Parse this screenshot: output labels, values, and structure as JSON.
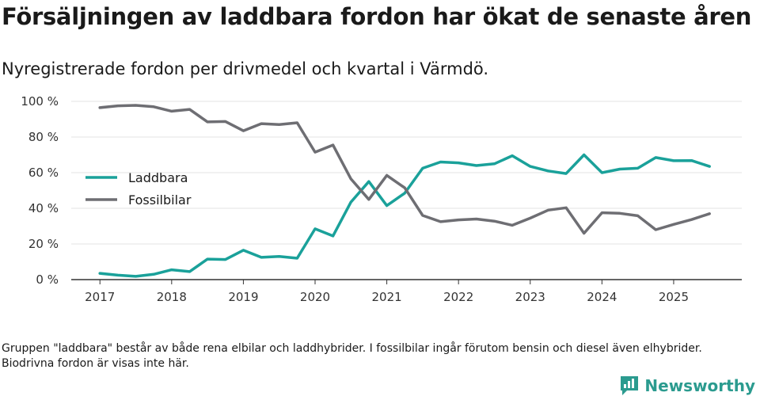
{
  "title": "Försäljningen av laddbara fordon har ökat de senaste åren",
  "subtitle": "Nyregistrerade fordon per drivmedel och kvartal i Värmdö.",
  "note": "Gruppen \"laddbara\" består av både rena elbilar och laddhybrider. I fossilbilar ingår förutom bensin och diesel även elhybrider. Biodrivna fordon är visas inte här.",
  "brand": {
    "name": "Newsworthy",
    "icon": "newsworthy-logo-icon",
    "color": "#2b9b8f"
  },
  "chart_data": {
    "type": "line",
    "title": "",
    "xlabel": "",
    "ylabel": "",
    "ylim": [
      0,
      100
    ],
    "xlim": [
      2016.6,
      2025.95
    ],
    "y_ticks": [
      0,
      20,
      40,
      60,
      80,
      100
    ],
    "y_tick_labels": [
      "0 %",
      "20 %",
      "40 %",
      "60 %",
      "80 %",
      "100 %"
    ],
    "x_ticks": [
      2017,
      2018,
      2019,
      2020,
      2021,
      2022,
      2023,
      2024,
      2025
    ],
    "x_tick_labels": [
      "2017",
      "2018",
      "2019",
      "2020",
      "2021",
      "2022",
      "2023",
      "2024",
      "2025"
    ],
    "grid": true,
    "legend_position": "left",
    "x": [
      2017.0,
      2017.25,
      2017.5,
      2017.75,
      2018.0,
      2018.25,
      2018.5,
      2018.75,
      2019.0,
      2019.25,
      2019.5,
      2019.75,
      2020.0,
      2020.25,
      2020.5,
      2020.75,
      2021.0,
      2021.25,
      2021.5,
      2021.75,
      2022.0,
      2022.25,
      2022.5,
      2022.75,
      2023.0,
      2023.25,
      2023.5,
      2023.75,
      2024.0,
      2024.25,
      2024.5,
      2024.75,
      2025.0,
      2025.25,
      2025.5
    ],
    "series": [
      {
        "name": "Laddbara",
        "color": "#1aa19a",
        "values": [
          3.5,
          2.5,
          1.8,
          3,
          5.5,
          4.5,
          11.5,
          11.3,
          16.5,
          12.5,
          13,
          12,
          28.5,
          24.5,
          43.5,
          55,
          41.5,
          48.5,
          62.5,
          66,
          65.5,
          64,
          65,
          69.5,
          63.5,
          61,
          59.5,
          70,
          60,
          62,
          62.5,
          68.5,
          66.7,
          66.8,
          63.5
        ]
      },
      {
        "name": "Fossilbilar",
        "color": "#6e6e73",
        "values": [
          96.5,
          97.5,
          97.8,
          97,
          94.5,
          95.5,
          88.5,
          88.7,
          83.5,
          87.5,
          87,
          88,
          71.5,
          75.5,
          56.5,
          45,
          58.5,
          51.5,
          36,
          32.5,
          33.5,
          34,
          32.8,
          30.5,
          34.5,
          39,
          40.3,
          26,
          37.5,
          37.2,
          35.8,
          28,
          31,
          33.7,
          37
        ]
      }
    ]
  }
}
